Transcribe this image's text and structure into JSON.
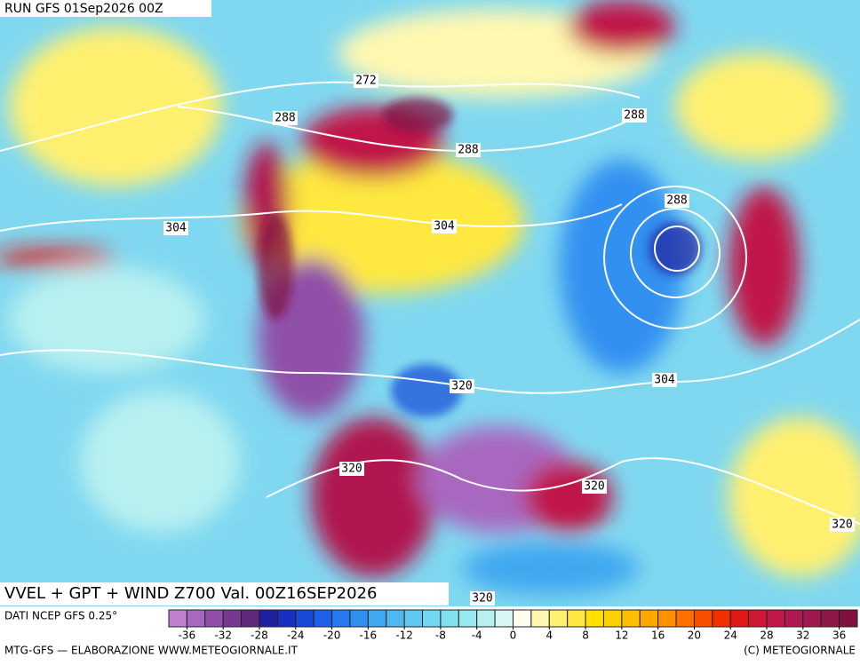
{
  "header": {
    "run": "RUN GFS 01Sep2026 00Z"
  },
  "map": {
    "contour_labels": [
      272,
      288,
      288,
      288,
      288,
      304,
      304,
      304,
      320,
      320,
      320,
      320,
      320
    ]
  },
  "footer": {
    "title": "VVEL + GPT + WIND Z700 Val. 00Z16SEP2026",
    "source": "DATI NCEP GFS 0.25°",
    "credit": "MTG-GFS — ELABORAZIONE WWW.METEOGIORNALE.IT",
    "copyright": "(C) METEOGIORNALE"
  },
  "colorbar": {
    "limits": [
      -38,
      38
    ],
    "ticks": [
      -36,
      -32,
      -28,
      -24,
      -20,
      -16,
      -12,
      -8,
      -4,
      0,
      4,
      8,
      12,
      16,
      20,
      24,
      28,
      32,
      36
    ],
    "colors": [
      "#c080d0",
      "#a868c0",
      "#9050a8",
      "#783890",
      "#602878",
      "#2020a0",
      "#1830c0",
      "#1848d8",
      "#2060e8",
      "#2878f0",
      "#3090f0",
      "#40a8f0",
      "#50b8f0",
      "#60c8f0",
      "#70d8f0",
      "#80e0f0",
      "#98e8f0",
      "#b8f0f0",
      "#d8f8f8",
      "#fffff0",
      "#fff8b0",
      "#fff070",
      "#ffe840",
      "#ffe000",
      "#ffd000",
      "#ffc000",
      "#ffa800",
      "#ff9000",
      "#ff7000",
      "#f85000",
      "#f03000",
      "#e01818",
      "#d01838",
      "#c01848",
      "#b01850",
      "#a01850",
      "#901848",
      "#801040"
    ]
  }
}
